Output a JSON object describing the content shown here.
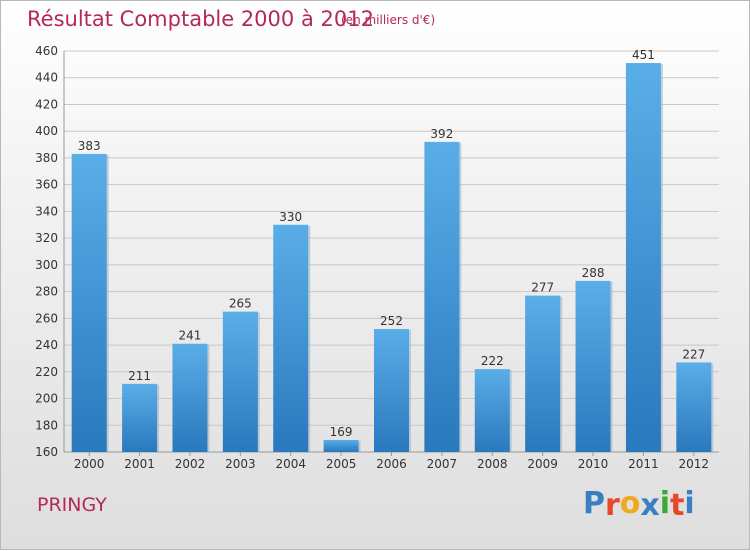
{
  "header": {
    "title": "Résultat Comptable 2000 à 2012",
    "subtitle": "(en milliers d'€)"
  },
  "footer": {
    "commune": "PRINGY",
    "logo": [
      "P",
      "r",
      "o",
      "x",
      "i",
      "t",
      "i"
    ],
    "logo_colors": [
      "#3a7fc1",
      "#e8462a",
      "#f2a81d",
      "#3a7fc1",
      "#3aa83a",
      "#e8462a",
      "#3a7fc1"
    ]
  },
  "chart_data": {
    "type": "bar",
    "title": "Résultat Comptable 2000 à 2012",
    "subtitle": "(en milliers d'€)",
    "categories": [
      "2000",
      "2001",
      "2002",
      "2003",
      "2004",
      "2005",
      "2006",
      "2007",
      "2008",
      "2009",
      "2010",
      "2011",
      "2012"
    ],
    "values": [
      383,
      211,
      241,
      265,
      330,
      169,
      252,
      392,
      222,
      277,
      288,
      451,
      227
    ],
    "ylim": [
      160,
      460
    ],
    "yticks": [
      160,
      180,
      200,
      220,
      240,
      260,
      280,
      300,
      320,
      340,
      360,
      380,
      400,
      420,
      440,
      460
    ],
    "grid": true,
    "bar_color": "#4a9ee0"
  }
}
